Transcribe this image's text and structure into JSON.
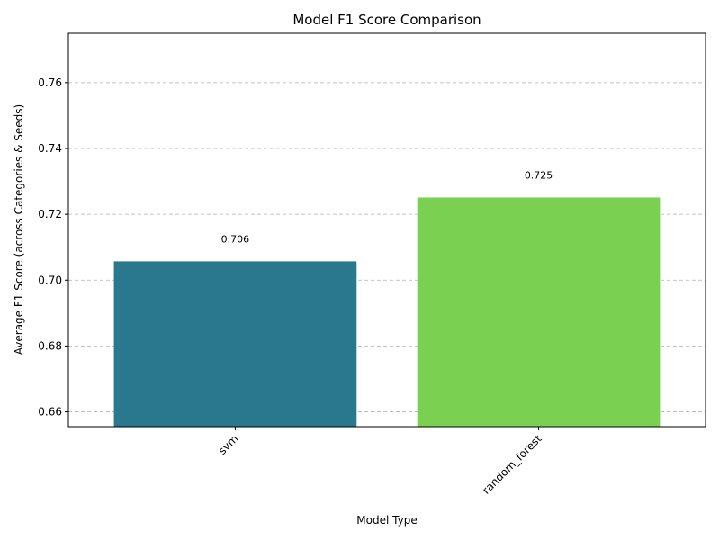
{
  "chart_data": {
    "type": "bar",
    "title": "Model F1 Score Comparison",
    "xlabel": "Model Type",
    "ylabel": "Average F1 Score (across Categories & Seeds)",
    "categories": [
      "svm",
      "random_forest"
    ],
    "values": [
      0.7057,
      0.7251
    ],
    "data_labels": [
      "0.706",
      "0.725"
    ],
    "bar_colors": [
      "#2a788e",
      "#7ad151"
    ],
    "ylim": [
      0.6555,
      0.775
    ],
    "yticks": [
      0.66,
      0.68,
      0.7,
      0.72,
      0.74,
      0.76
    ],
    "ytick_labels": [
      "0.66",
      "0.68",
      "0.70",
      "0.72",
      "0.74",
      "0.76"
    ],
    "grid": "y-dashed",
    "xtick_rotation": 45
  }
}
